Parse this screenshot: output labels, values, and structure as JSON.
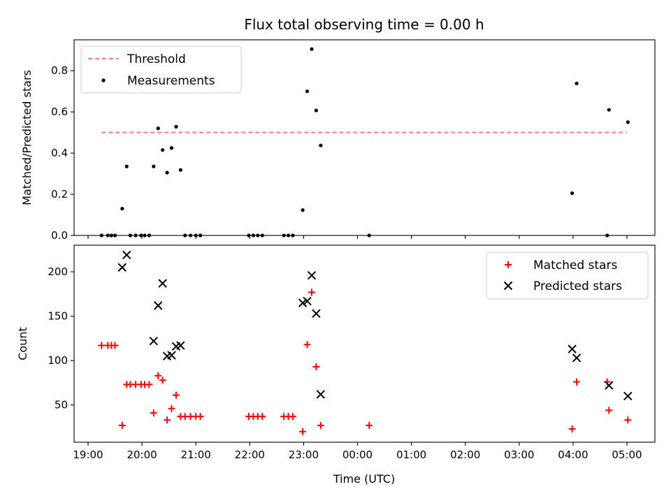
{
  "colors": {
    "threshold": "#f08080",
    "measurements": "#000000",
    "matched": "#ff0000",
    "predicted": "#000000"
  },
  "chart_data": [
    {
      "type": "scatter",
      "title": "Flux total observing time = 0.00 h",
      "xlabel": "",
      "ylabel": "Matched/Predicted stars",
      "ylim": [
        0,
        0.95
      ],
      "yticks": [
        0.0,
        0.2,
        0.4,
        0.6,
        0.8
      ],
      "ytick_labels": [
        "0.0",
        "0.2",
        "0.4",
        "0.6",
        "0.8"
      ],
      "grid": false,
      "legend_position": "top-left",
      "x_time_range": [
        "19:00",
        "05:00"
      ],
      "series": [
        {
          "name": "Threshold",
          "kind": "dashed-line",
          "points": [
            [
              "19:15",
              0.5
            ],
            [
              "05:00",
              0.5
            ]
          ]
        },
        {
          "name": "Measurements",
          "kind": "dot",
          "points": [
            [
              "19:15",
              0.0
            ],
            [
              "19:22",
              0.0
            ],
            [
              "19:26",
              0.0
            ],
            [
              "19:30",
              0.0
            ],
            [
              "19:38",
              0.13
            ],
            [
              "19:43",
              0.335
            ],
            [
              "19:47",
              0.0
            ],
            [
              "19:53",
              0.0
            ],
            [
              "19:59",
              0.0
            ],
            [
              "20:03",
              0.0
            ],
            [
              "20:08",
              0.0
            ],
            [
              "20:13",
              0.335
            ],
            [
              "20:18",
              0.52
            ],
            [
              "20:23",
              0.415
            ],
            [
              "20:28",
              0.305
            ],
            [
              "20:33",
              0.425
            ],
            [
              "20:38",
              0.528
            ],
            [
              "20:43",
              0.318
            ],
            [
              "20:48",
              0.0
            ],
            [
              "20:54",
              0.0
            ],
            [
              "21:00",
              0.0
            ],
            [
              "21:05",
              0.0
            ],
            [
              "21:59",
              0.0
            ],
            [
              "22:04",
              0.0
            ],
            [
              "22:09",
              0.0
            ],
            [
              "22:14",
              0.0
            ],
            [
              "22:38",
              0.0
            ],
            [
              "22:43",
              0.0
            ],
            [
              "22:48",
              0.0
            ],
            [
              "22:59",
              0.123
            ],
            [
              "23:04",
              0.7
            ],
            [
              "23:09",
              0.905
            ],
            [
              "23:14",
              0.607
            ],
            [
              "23:19",
              0.437
            ],
            [
              "00:13",
              0.0
            ],
            [
              "03:59",
              0.205
            ],
            [
              "04:04",
              0.738
            ],
            [
              "04:38",
              0.0
            ],
            [
              "04:40",
              0.61
            ],
            [
              "05:01",
              0.55
            ]
          ]
        }
      ]
    },
    {
      "type": "scatter",
      "title": "",
      "xlabel": "Time (UTC)",
      "ylabel": "Count",
      "ylim": [
        8,
        230
      ],
      "yticks": [
        50,
        100,
        150,
        200
      ],
      "ytick_labels": [
        "50",
        "100",
        "150",
        "200"
      ],
      "x_time_range": [
        "19:00",
        "05:00"
      ],
      "xticks": [
        "19:00",
        "20:00",
        "21:00",
        "22:00",
        "23:00",
        "00:00",
        "01:00",
        "02:00",
        "03:00",
        "04:00",
        "05:00"
      ],
      "grid": false,
      "legend_position": "top-right",
      "series": [
        {
          "name": "Matched stars",
          "kind": "plus",
          "points": [
            [
              "19:15",
              117
            ],
            [
              "19:22",
              117
            ],
            [
              "19:26",
              117
            ],
            [
              "19:30",
              117
            ],
            [
              "19:38",
              27
            ],
            [
              "19:43",
              73
            ],
            [
              "19:47",
              73
            ],
            [
              "19:53",
              73
            ],
            [
              "19:59",
              73
            ],
            [
              "20:03",
              73
            ],
            [
              "20:08",
              73
            ],
            [
              "20:13",
              41
            ],
            [
              "20:18",
              83
            ],
            [
              "20:23",
              78
            ],
            [
              "20:28",
              33
            ],
            [
              "20:33",
              46
            ],
            [
              "20:38",
              61
            ],
            [
              "20:43",
              37
            ],
            [
              "20:48",
              37
            ],
            [
              "20:54",
              37
            ],
            [
              "21:00",
              37
            ],
            [
              "21:05",
              37
            ],
            [
              "21:59",
              37
            ],
            [
              "22:04",
              37
            ],
            [
              "22:09",
              37
            ],
            [
              "22:14",
              37
            ],
            [
              "22:38",
              37
            ],
            [
              "22:43",
              37
            ],
            [
              "22:48",
              37
            ],
            [
              "22:59",
              20
            ],
            [
              "23:04",
              118
            ],
            [
              "23:09",
              177
            ],
            [
              "23:14",
              93
            ],
            [
              "23:19",
              27
            ],
            [
              "00:13",
              27
            ],
            [
              "03:59",
              23
            ],
            [
              "04:04",
              76
            ],
            [
              "04:38",
              76
            ],
            [
              "04:40",
              44
            ],
            [
              "05:01",
              33
            ]
          ]
        },
        {
          "name": "Predicted stars",
          "kind": "x",
          "points": [
            [
              "19:38",
              205
            ],
            [
              "19:43",
              219
            ],
            [
              "20:13",
              122
            ],
            [
              "20:18",
              162
            ],
            [
              "20:23",
              187
            ],
            [
              "20:28",
              105
            ],
            [
              "20:33",
              106
            ],
            [
              "20:38",
              116
            ],
            [
              "20:43",
              117
            ],
            [
              "22:59",
              165
            ],
            [
              "23:04",
              167
            ],
            [
              "23:09",
              196
            ],
            [
              "23:14",
              153
            ],
            [
              "23:19",
              62
            ],
            [
              "03:59",
              113
            ],
            [
              "04:04",
              103
            ],
            [
              "04:40",
              72
            ],
            [
              "05:01",
              60
            ]
          ]
        }
      ]
    }
  ]
}
